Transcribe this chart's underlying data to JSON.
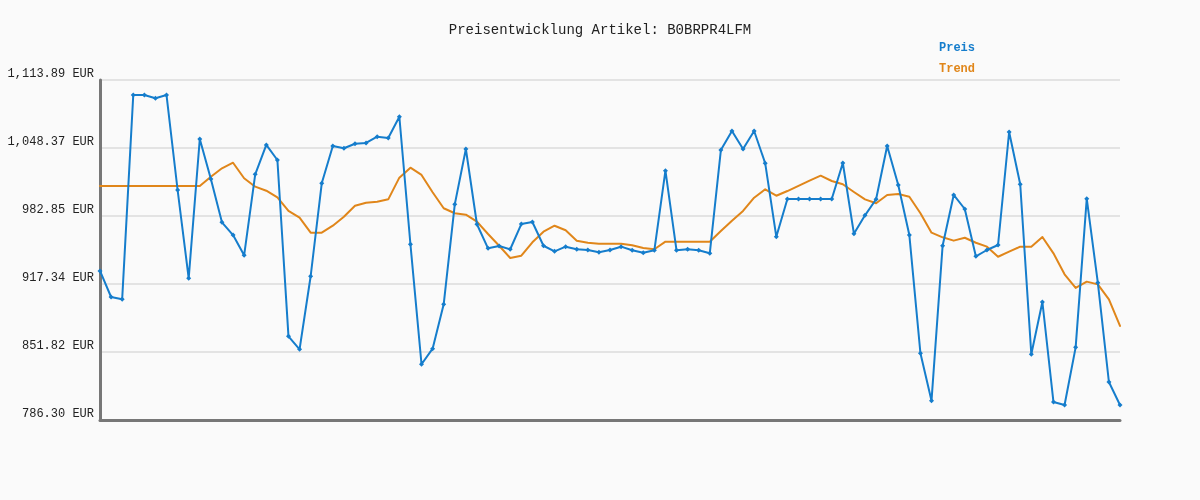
{
  "chart_data": {
    "type": "line",
    "title": "Preisentwicklung Artikel: B0BRPR4LFM",
    "categories": [
      null,
      null,
      null,
      null,
      null,
      null,
      null,
      null,
      null,
      null,
      null,
      null,
      null,
      null,
      null,
      null,
      null,
      null,
      null,
      null,
      null,
      null,
      null,
      null,
      null,
      null,
      null,
      null,
      null,
      null,
      null,
      null,
      null,
      null,
      null,
      null,
      null,
      null,
      null,
      null,
      null,
      null,
      null,
      null,
      null,
      null,
      null,
      null,
      null,
      null,
      null,
      null,
      null,
      null,
      null,
      null,
      null,
      null,
      null,
      null,
      null,
      null,
      null,
      null,
      null,
      null,
      null,
      null,
      null,
      null,
      null,
      null,
      null,
      null,
      null,
      null,
      null,
      null,
      null,
      null,
      null,
      null,
      null,
      null,
      null,
      null,
      null,
      null,
      null,
      null,
      null,
      null,
      null
    ],
    "series": [
      {
        "name": "Preis",
        "color": "#157dcc",
        "values": [
          929.9,
          904.8,
          902.6,
          1099.4,
          1099.4,
          1096.3,
          1099.4,
          1007.9,
          922.8,
          1057.0,
          1018.5,
          976.8,
          964.5,
          945.0,
          1023.0,
          1051.3,
          1036.8,
          866.9,
          854.4,
          924.8,
          1014.4,
          1050.3,
          1048.1,
          1052.5,
          1053.2,
          1059.3,
          1058.0,
          1078.5,
          955.6,
          840.0,
          855.0,
          897.8,
          994.1,
          1047.4,
          974.9,
          951.7,
          953.9,
          950.8,
          975.1,
          977.1,
          954.2,
          948.8,
          953.3,
          950.8,
          950.1,
          947.9,
          950.1,
          953.3,
          949.8,
          947.5,
          949.8,
          1026.5,
          949.8,
          950.8,
          949.8,
          946.9,
          1046.4,
          1064.8,
          1047.4,
          1064.8,
          1033.6,
          962.9,
          999.2,
          999.2,
          999.2,
          999.2,
          999.2,
          1033.9,
          965.8,
          983.5,
          999.0,
          1050.3,
          1012.7,
          964.5,
          850.6,
          804.9,
          954.2,
          1003.1,
          989.6,
          944.0,
          950.1,
          954.9,
          1063.8,
          1013.4,
          849.6,
          900.0,
          803.6,
          800.8,
          856.3,
          999.5,
          918.6,
          822.9,
          800.8
        ]
      },
      {
        "name": "Trend",
        "color": "#e0861a",
        "marker": "none",
        "values": [
          1011.8,
          1011.8,
          1011.8,
          1011.8,
          1011.8,
          1011.8,
          1011.8,
          1011.8,
          1011.8,
          1011.8,
          1020.7,
          1028.8,
          1034.2,
          1019.2,
          1011.1,
          1007.2,
          1000.9,
          987.7,
          981.2,
          966.8,
          966.8,
          973.5,
          982.2,
          992.8,
          995.7,
          996.6,
          998.9,
          1019.8,
          1029.4,
          1022.4,
          1005.7,
          990.3,
          985.5,
          984.1,
          977.4,
          965.5,
          954.2,
          942.4,
          944.6,
          957.5,
          967.7,
          973.5,
          969.1,
          959.1,
          957.1,
          956.2,
          956.2,
          956.2,
          954.6,
          952.0,
          950.8,
          958.1,
          958.1,
          958.1,
          958.1,
          958.1,
          968.4,
          978.3,
          987.7,
          1000.5,
          1008.6,
          1002.4,
          1006.9,
          1011.8,
          1016.9,
          1021.7,
          1016.6,
          1013.4,
          1006.0,
          998.9,
          995.1,
          1003.1,
          1004.1,
          1001.4,
          985.5,
          966.8,
          962.3,
          959.1,
          961.9,
          957.1,
          953.3,
          943.6,
          948.5,
          953.3,
          953.3,
          962.6,
          946.9,
          926.7,
          913.5,
          919.6,
          917.0,
          902.6,
          876.9
        ]
      }
    ],
    "ylim": [
      786.3,
      1113.89
    ],
    "yticks": [
      {
        "value": 786.3,
        "label": "786.30 EUR"
      },
      {
        "value": 851.82,
        "label": "851.82 EUR"
      },
      {
        "value": 917.34,
        "label": "917.34 EUR"
      },
      {
        "value": 982.85,
        "label": "982.85 EUR"
      },
      {
        "value": 1048.37,
        "label": "1,048.37 EUR"
      },
      {
        "value": 1113.89,
        "label": "1,113.89 EUR"
      }
    ],
    "grid": "y",
    "legend": "top right",
    "marker": "diamond",
    "line_style": "solid"
  }
}
